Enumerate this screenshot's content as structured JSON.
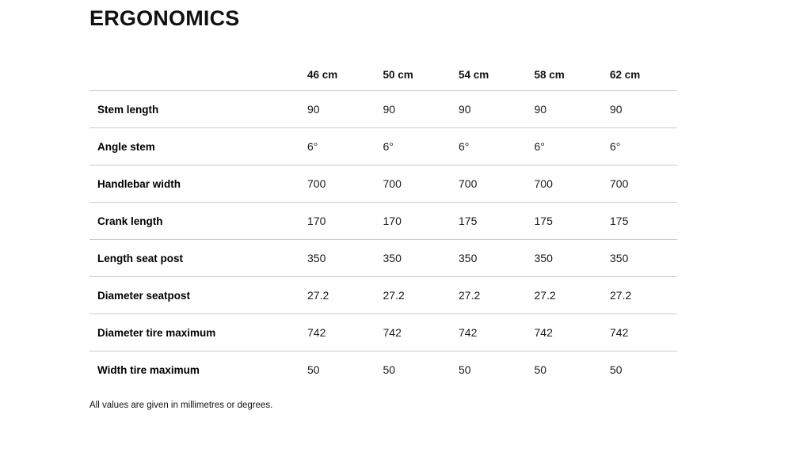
{
  "page": {
    "title": "ERGONOMICS",
    "footnote": "All values are given in millimetres or degrees."
  },
  "table": {
    "columns": [
      "46 cm",
      "50 cm",
      "54 cm",
      "58 cm",
      "62 cm"
    ],
    "rows": [
      {
        "label": "Stem length",
        "values": [
          "90",
          "90",
          "90",
          "90",
          "90"
        ]
      },
      {
        "label": "Angle stem",
        "values": [
          "6°",
          "6°",
          "6°",
          "6°",
          "6°"
        ]
      },
      {
        "label": "Handlebar width",
        "values": [
          "700",
          "700",
          "700",
          "700",
          "700"
        ]
      },
      {
        "label": "Crank length",
        "values": [
          "170",
          "170",
          "175",
          "175",
          "175"
        ]
      },
      {
        "label": "Length seat post",
        "values": [
          "350",
          "350",
          "350",
          "350",
          "350"
        ]
      },
      {
        "label": "Diameter seatpost",
        "values": [
          "27.2",
          "27.2",
          "27.2",
          "27.2",
          "27.2"
        ]
      },
      {
        "label": "Diameter tire maximum",
        "values": [
          "742",
          "742",
          "742",
          "742",
          "742"
        ]
      },
      {
        "label": "Width tire maximum",
        "values": [
          "50",
          "50",
          "50",
          "50",
          "50"
        ]
      }
    ]
  },
  "colors": {
    "title_text": "#111111",
    "row_divider": "#cccccc",
    "value_text": "#1a1a1a"
  }
}
